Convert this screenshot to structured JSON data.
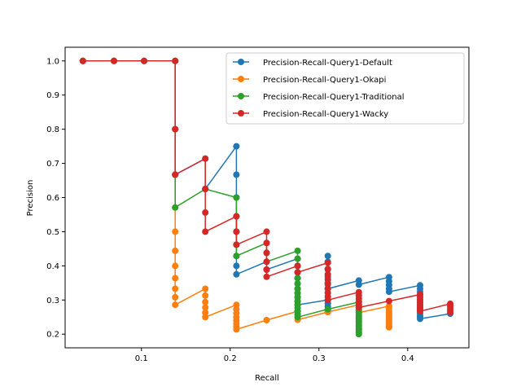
{
  "chart_data": {
    "type": "line",
    "title": "",
    "xlabel": "Recall",
    "ylabel": "Precision",
    "xlim": [
      0.014,
      0.469
    ],
    "ylim": [
      0.16,
      1.04
    ],
    "xticks": [
      "0.1",
      "0.2",
      "0.3",
      "0.4"
    ],
    "yticks": [
      "0.2",
      "0.3",
      "0.4",
      "0.5",
      "0.6",
      "0.7",
      "0.8",
      "0.9",
      "1.0"
    ],
    "grid": false,
    "legend_position": "top-right",
    "series": [
      {
        "name": "Precision-Recall-Query1-Default",
        "color": "#1f77b4",
        "points": [
          [
            0.034,
            1.0
          ],
          [
            0.069,
            1.0
          ],
          [
            0.103,
            1.0
          ],
          [
            0.138,
            1.0
          ],
          [
            0.138,
            0.8
          ],
          [
            0.138,
            0.667
          ],
          [
            0.172,
            0.714
          ],
          [
            0.172,
            0.625
          ],
          [
            0.207,
            0.75
          ],
          [
            0.207,
            0.667
          ],
          [
            0.207,
            0.6
          ],
          [
            0.207,
            0.545
          ],
          [
            0.207,
            0.5
          ],
          [
            0.207,
            0.462
          ],
          [
            0.207,
            0.429
          ],
          [
            0.207,
            0.4
          ],
          [
            0.207,
            0.375
          ],
          [
            0.241,
            0.412
          ],
          [
            0.241,
            0.389
          ],
          [
            0.276,
            0.421
          ],
          [
            0.276,
            0.4
          ],
          [
            0.276,
            0.381
          ],
          [
            0.276,
            0.364
          ],
          [
            0.276,
            0.348
          ],
          [
            0.276,
            0.333
          ],
          [
            0.276,
            0.32
          ],
          [
            0.276,
            0.308
          ],
          [
            0.276,
            0.296
          ],
          [
            0.276,
            0.286
          ],
          [
            0.31,
            0.3
          ],
          [
            0.31,
            0.29
          ],
          [
            0.31,
            0.281
          ],
          [
            0.31,
            0.273
          ],
          [
            0.31,
            0.265
          ],
          [
            0.31,
            0.429
          ],
          [
            0.31,
            0.412
          ],
          [
            0.31,
            0.389
          ],
          [
            0.31,
            0.368
          ],
          [
            0.31,
            0.35
          ],
          [
            0.31,
            0.333
          ],
          [
            0.345,
            0.357
          ],
          [
            0.345,
            0.345
          ],
          [
            0.379,
            0.367
          ],
          [
            0.379,
            0.355
          ],
          [
            0.379,
            0.344
          ],
          [
            0.379,
            0.333
          ],
          [
            0.379,
            0.324
          ],
          [
            0.414,
            0.343
          ],
          [
            0.414,
            0.333
          ],
          [
            0.414,
            0.324
          ],
          [
            0.414,
            0.316
          ],
          [
            0.414,
            0.308
          ],
          [
            0.414,
            0.3
          ],
          [
            0.414,
            0.293
          ],
          [
            0.414,
            0.286
          ],
          [
            0.414,
            0.279
          ],
          [
            0.414,
            0.273
          ],
          [
            0.414,
            0.267
          ],
          [
            0.414,
            0.261
          ],
          [
            0.414,
            0.255
          ],
          [
            0.414,
            0.25
          ],
          [
            0.414,
            0.245
          ],
          [
            0.448,
            0.26
          ]
        ]
      },
      {
        "name": "Precision-Recall-Query1-Okapi",
        "color": "#ff7f0e",
        "points": [
          [
            0.034,
            1.0
          ],
          [
            0.069,
            1.0
          ],
          [
            0.103,
            1.0
          ],
          [
            0.138,
            1.0
          ],
          [
            0.138,
            0.8
          ],
          [
            0.138,
            0.667
          ],
          [
            0.138,
            0.571
          ],
          [
            0.138,
            0.5
          ],
          [
            0.138,
            0.444
          ],
          [
            0.138,
            0.4
          ],
          [
            0.138,
            0.364
          ],
          [
            0.138,
            0.333
          ],
          [
            0.138,
            0.308
          ],
          [
            0.138,
            0.286
          ],
          [
            0.172,
            0.333
          ],
          [
            0.172,
            0.313
          ],
          [
            0.172,
            0.294
          ],
          [
            0.172,
            0.278
          ],
          [
            0.172,
            0.263
          ],
          [
            0.172,
            0.25
          ],
          [
            0.207,
            0.286
          ],
          [
            0.207,
            0.273
          ],
          [
            0.207,
            0.261
          ],
          [
            0.207,
            0.25
          ],
          [
            0.207,
            0.24
          ],
          [
            0.207,
            0.231
          ],
          [
            0.207,
            0.222
          ],
          [
            0.207,
            0.214
          ],
          [
            0.241,
            0.241
          ],
          [
            0.276,
            0.267
          ],
          [
            0.276,
            0.258
          ],
          [
            0.276,
            0.25
          ],
          [
            0.276,
            0.242
          ],
          [
            0.31,
            0.265
          ],
          [
            0.345,
            0.286
          ],
          [
            0.345,
            0.278
          ],
          [
            0.345,
            0.27
          ],
          [
            0.345,
            0.263
          ],
          [
            0.379,
            0.282
          ],
          [
            0.379,
            0.275
          ],
          [
            0.379,
            0.268
          ],
          [
            0.379,
            0.262
          ],
          [
            0.379,
            0.256
          ],
          [
            0.379,
            0.25
          ],
          [
            0.379,
            0.244
          ],
          [
            0.379,
            0.239
          ],
          [
            0.379,
            0.234
          ],
          [
            0.379,
            0.229
          ],
          [
            0.379,
            0.224
          ],
          [
            0.379,
            0.22
          ]
        ]
      },
      {
        "name": "Precision-Recall-Query1-Traditional",
        "color": "#2ca02c",
        "points": [
          [
            0.034,
            1.0
          ],
          [
            0.069,
            1.0
          ],
          [
            0.103,
            1.0
          ],
          [
            0.138,
            1.0
          ],
          [
            0.138,
            0.8
          ],
          [
            0.138,
            0.667
          ],
          [
            0.138,
            0.571
          ],
          [
            0.172,
            0.625
          ],
          [
            0.207,
            0.6
          ],
          [
            0.207,
            0.545
          ],
          [
            0.207,
            0.5
          ],
          [
            0.207,
            0.462
          ],
          [
            0.207,
            0.429
          ],
          [
            0.241,
            0.467
          ],
          [
            0.241,
            0.438
          ],
          [
            0.241,
            0.412
          ],
          [
            0.276,
            0.444
          ],
          [
            0.276,
            0.421
          ],
          [
            0.276,
            0.4
          ],
          [
            0.276,
            0.381
          ],
          [
            0.276,
            0.364
          ],
          [
            0.276,
            0.348
          ],
          [
            0.276,
            0.333
          ],
          [
            0.276,
            0.32
          ],
          [
            0.276,
            0.308
          ],
          [
            0.276,
            0.296
          ],
          [
            0.276,
            0.286
          ],
          [
            0.276,
            0.276
          ],
          [
            0.276,
            0.267
          ],
          [
            0.276,
            0.258
          ],
          [
            0.276,
            0.25
          ],
          [
            0.31,
            0.273
          ],
          [
            0.345,
            0.294
          ],
          [
            0.345,
            0.286
          ],
          [
            0.345,
            0.278
          ],
          [
            0.345,
            0.27
          ],
          [
            0.345,
            0.263
          ],
          [
            0.345,
            0.256
          ],
          [
            0.345,
            0.25
          ],
          [
            0.345,
            0.244
          ],
          [
            0.345,
            0.238
          ],
          [
            0.345,
            0.233
          ],
          [
            0.345,
            0.227
          ],
          [
            0.345,
            0.222
          ],
          [
            0.345,
            0.217
          ],
          [
            0.345,
            0.213
          ],
          [
            0.345,
            0.208
          ],
          [
            0.345,
            0.204
          ],
          [
            0.345,
            0.2
          ]
        ]
      },
      {
        "name": "Precision-Recall-Query1-Wacky",
        "color": "#d62728",
        "points": [
          [
            0.034,
            1.0
          ],
          [
            0.069,
            1.0
          ],
          [
            0.103,
            1.0
          ],
          [
            0.138,
            1.0
          ],
          [
            0.138,
            0.8
          ],
          [
            0.138,
            0.667
          ],
          [
            0.172,
            0.714
          ],
          [
            0.172,
            0.625
          ],
          [
            0.172,
            0.556
          ],
          [
            0.172,
            0.5
          ],
          [
            0.207,
            0.545
          ],
          [
            0.207,
            0.5
          ],
          [
            0.207,
            0.462
          ],
          [
            0.241,
            0.5
          ],
          [
            0.241,
            0.467
          ],
          [
            0.241,
            0.438
          ],
          [
            0.241,
            0.412
          ],
          [
            0.241,
            0.389
          ],
          [
            0.241,
            0.368
          ],
          [
            0.276,
            0.4
          ],
          [
            0.276,
            0.381
          ],
          [
            0.31,
            0.409
          ],
          [
            0.31,
            0.391
          ],
          [
            0.31,
            0.375
          ],
          [
            0.31,
            0.36
          ],
          [
            0.31,
            0.346
          ],
          [
            0.31,
            0.333
          ],
          [
            0.31,
            0.321
          ],
          [
            0.31,
            0.31
          ],
          [
            0.31,
            0.3
          ],
          [
            0.345,
            0.323
          ],
          [
            0.345,
            0.313
          ],
          [
            0.345,
            0.303
          ],
          [
            0.345,
            0.294
          ],
          [
            0.345,
            0.286
          ],
          [
            0.345,
            0.278
          ],
          [
            0.379,
            0.297
          ],
          [
            0.414,
            0.316
          ],
          [
            0.414,
            0.308
          ],
          [
            0.414,
            0.3
          ],
          [
            0.414,
            0.293
          ],
          [
            0.414,
            0.286
          ],
          [
            0.414,
            0.279
          ],
          [
            0.414,
            0.273
          ],
          [
            0.414,
            0.267
          ],
          [
            0.448,
            0.289
          ],
          [
            0.448,
            0.283
          ],
          [
            0.448,
            0.277
          ],
          [
            0.448,
            0.271
          ],
          [
            0.448,
            0.265
          ]
        ]
      }
    ]
  }
}
